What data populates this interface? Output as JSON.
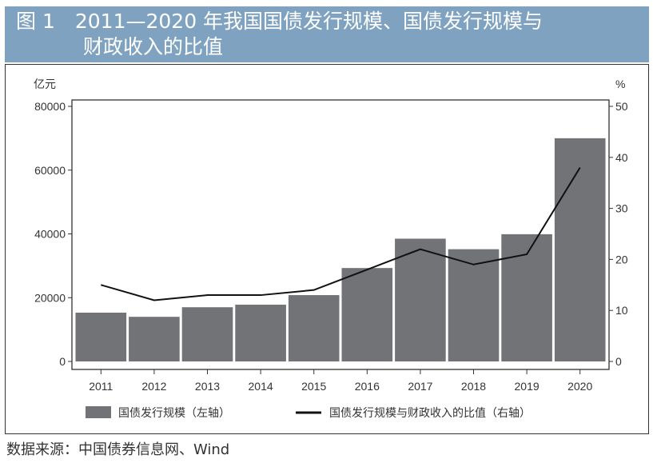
{
  "title": {
    "line1": "图 1　2011—2020 年我国国债发行规模、国债发行规模与",
    "line2": "财政收入的比值"
  },
  "source": "数据来源：中国债券信息网、Wind",
  "colors": {
    "title_band": "#7ea2bf",
    "bar": "#727376",
    "line": "#111111"
  },
  "chart_data": {
    "type": "bar+line",
    "categories": [
      "2011",
      "2012",
      "2013",
      "2014",
      "2015",
      "2016",
      "2017",
      "2018",
      "2019",
      "2020"
    ],
    "left_axis": {
      "unit": "亿元",
      "ylim": [
        0,
        80000
      ],
      "ticks": [
        "0",
        "20000",
        "40000",
        "60000",
        "80000"
      ]
    },
    "right_axis": {
      "unit": "%",
      "ylim": [
        0,
        50
      ],
      "ticks": [
        "0",
        "10",
        "20",
        "30",
        "40",
        "50"
      ]
    },
    "series": [
      {
        "name": "国债发行规模（左轴）",
        "type": "bar",
        "axis": "left",
        "values": [
          15300,
          14000,
          17000,
          17800,
          20800,
          29300,
          38500,
          35200,
          39900,
          70000
        ]
      },
      {
        "name": "国债发行规模与财政收入的比值（右轴）",
        "type": "line",
        "axis": "right",
        "values": [
          15,
          12,
          13,
          13,
          14,
          18,
          22,
          19,
          21,
          38
        ]
      }
    ],
    "legend": "bottom",
    "grid": false
  }
}
